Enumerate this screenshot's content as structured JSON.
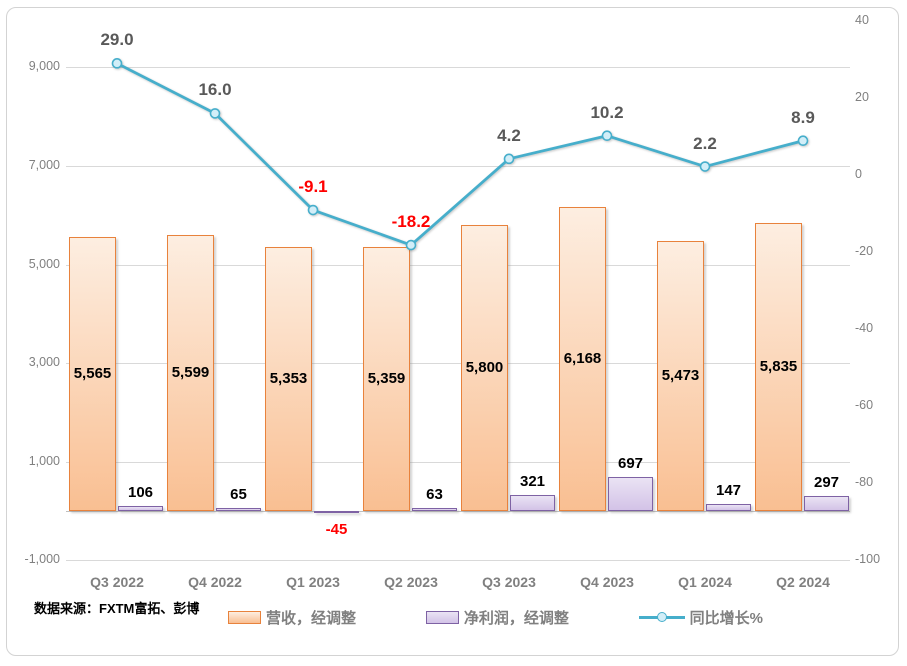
{
  "chart_data": {
    "type": "combo_bar_line",
    "title": "",
    "categories": [
      "Q3 2022",
      "Q4 2022",
      "Q1 2023",
      "Q2 2023",
      "Q3 2023",
      "Q4 2023",
      "Q1 2024",
      "Q2 2024"
    ],
    "series": [
      {
        "name": "营收，经调整",
        "type": "bar",
        "axis": "left",
        "values": [
          5565,
          5599,
          5353,
          5359,
          5800,
          6168,
          5473,
          5835
        ]
      },
      {
        "name": "净利润，经调整",
        "type": "bar",
        "axis": "left",
        "values": [
          106,
          65,
          -45,
          63,
          321,
          697,
          147,
          297
        ]
      },
      {
        "name": "同比增长%",
        "type": "line",
        "axis": "right",
        "values": [
          29.0,
          16.0,
          -9.1,
          -18.2,
          4.2,
          10.2,
          2.2,
          8.9
        ]
      }
    ],
    "left_axis": {
      "min": -1000,
      "max": 10000,
      "tick_interval": 2000,
      "ticks": [
        9000,
        7000,
        5000,
        3000,
        1000,
        -1000
      ]
    },
    "right_axis": {
      "min": -100,
      "max": 40,
      "tick_interval": 20,
      "ticks": [
        40,
        20,
        0,
        -20,
        -40,
        -60,
        -80,
        -100
      ]
    },
    "grid": "horizontal",
    "legend_position": "bottom"
  },
  "legend": {
    "items": [
      {
        "label": "营收，经调整",
        "swatch": "bar-orange"
      },
      {
        "label": "净利润，经调整",
        "swatch": "bar-purple"
      },
      {
        "label": "同比增长%",
        "swatch": "line-teal"
      }
    ]
  },
  "source_note": "数据来源：FXTM富拓、彭博",
  "colors": {
    "bar_revenue_border": "#E8823C",
    "bar_revenue_top": "#FDEEE1",
    "bar_revenue_bottom": "#F9BF92",
    "bar_profit_border": "#7E62A4",
    "bar_profit_top": "#EAE3F4",
    "bar_profit_bottom": "#D3C3E7",
    "line": "#46AECB",
    "marker_fill": "#D2EEF8",
    "negative_label": "#FF0000",
    "line_label": "#595959",
    "axis_text": "#808080",
    "gridline": "#D9D9D9",
    "bar_label": "#000000"
  }
}
